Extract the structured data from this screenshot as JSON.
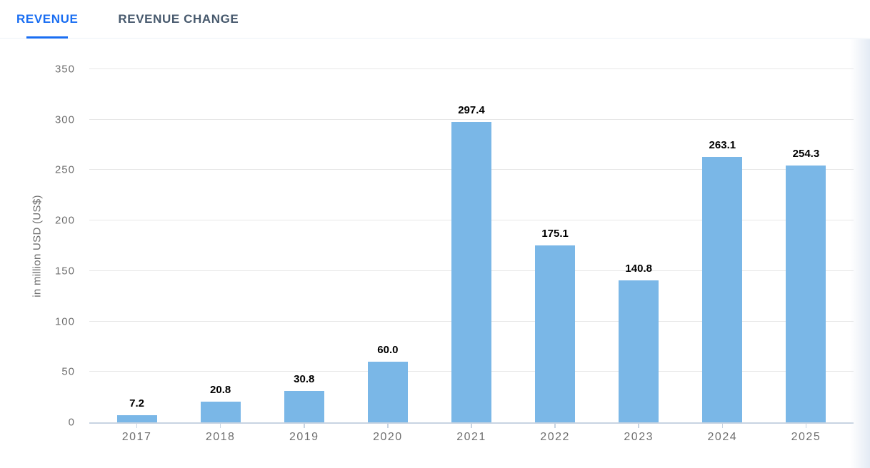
{
  "tabs": [
    {
      "label": "REVENUE",
      "active": true
    },
    {
      "label": "REVENUE CHANGE",
      "active": false
    }
  ],
  "chart_data": {
    "type": "bar",
    "categories": [
      "2017",
      "2018",
      "2019",
      "2020",
      "2021",
      "2022",
      "2023",
      "2024",
      "2025"
    ],
    "values": [
      7.2,
      20.8,
      30.8,
      60.0,
      297.4,
      175.1,
      140.8,
      263.1,
      254.3
    ],
    "value_labels": [
      "7.2",
      "20.8",
      "30.8",
      "60.0",
      "297.4",
      "175.1",
      "140.8",
      "263.1",
      "254.3"
    ],
    "title": "",
    "xlabel": "",
    "ylabel": "in million USD (US$)",
    "ylim": [
      0,
      350
    ],
    "yticks": [
      0,
      50,
      100,
      150,
      200,
      250,
      300,
      350
    ],
    "grid": true,
    "legend": "none",
    "bar_color": "#7ab7e7"
  },
  "colors": {
    "active_tab": "#1a6ef2",
    "inactive_tab": "#47596d",
    "tab_divider": "#edf1f7",
    "bar_color": "#7ab7e7",
    "grid_line": "#e7e7e7",
    "axis_line": "#c8d4e2",
    "tick_text": "#707070",
    "y_title": "#6e6e6e",
    "value_text": "#000000"
  }
}
